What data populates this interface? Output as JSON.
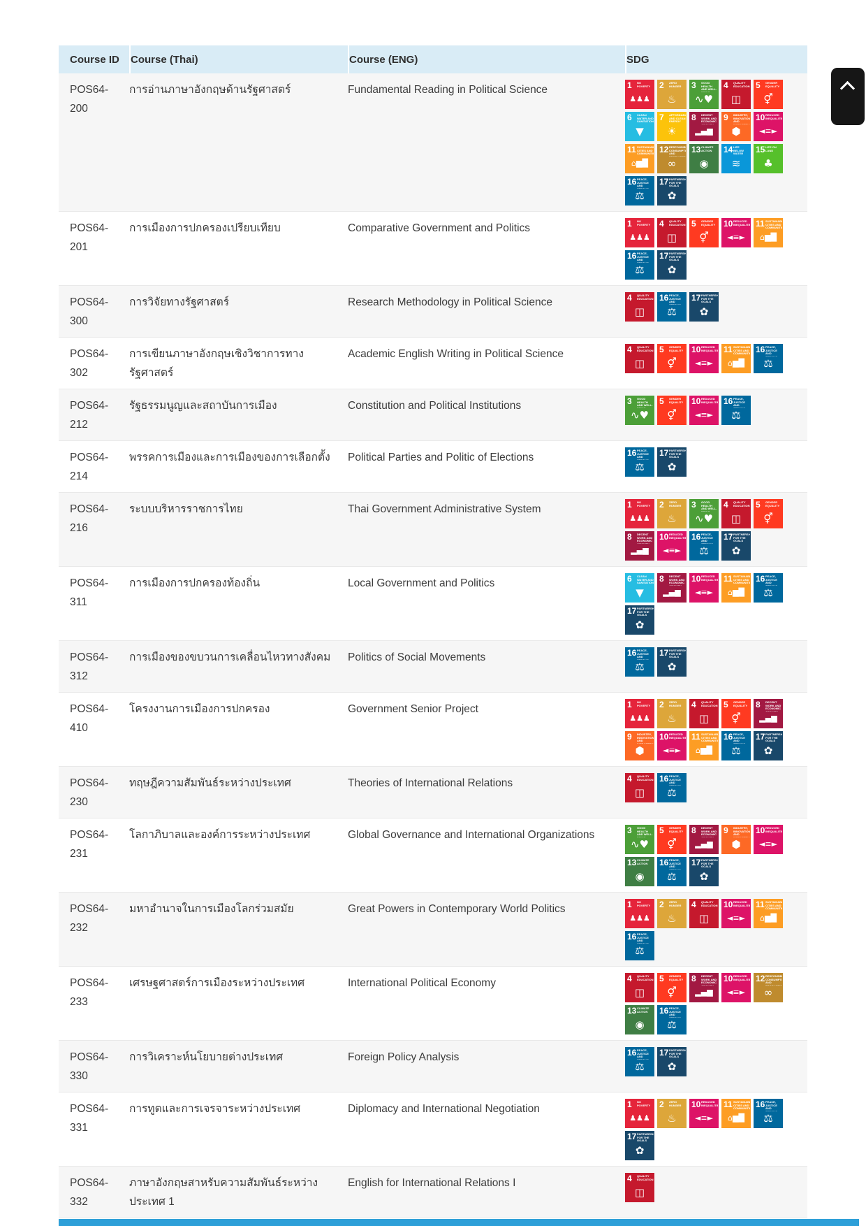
{
  "header": {
    "columns": [
      "Course ID",
      "Course (Thai)",
      "Course (ENG)",
      "SDG"
    ]
  },
  "sdg_goals": {
    "1": {
      "name": "sdg-1-no-poverty-icon",
      "title": "NO POVERTY",
      "color": "#E5243B",
      "glyph": "♟♟♟"
    },
    "2": {
      "name": "sdg-2-zero-hunger-icon",
      "title": "ZERO HUNGER",
      "color": "#DDA63A",
      "glyph": "♨"
    },
    "3": {
      "name": "sdg-3-good-health-icon",
      "title": "GOOD HEALTH AND WELL-BEING",
      "color": "#4C9F38",
      "glyph": "∿♥"
    },
    "4": {
      "name": "sdg-4-quality-education-icon",
      "title": "QUALITY EDUCATION",
      "color": "#C5192D",
      "glyph": "◫"
    },
    "5": {
      "name": "sdg-5-gender-equality-icon",
      "title": "GENDER EQUALITY",
      "color": "#FF3A21",
      "glyph": "⚥"
    },
    "6": {
      "name": "sdg-6-clean-water-icon",
      "title": "CLEAN WATER AND SANITATION",
      "color": "#26BDE2",
      "glyph": "▼"
    },
    "7": {
      "name": "sdg-7-clean-energy-icon",
      "title": "AFFORDABLE AND CLEAN ENERGY",
      "color": "#FCC30B",
      "glyph": "☀"
    },
    "8": {
      "name": "sdg-8-decent-work-icon",
      "title": "DECENT WORK AND ECONOMIC GROWTH",
      "color": "#A21942",
      "glyph": "▂▄▆"
    },
    "9": {
      "name": "sdg-9-industry-innovation-icon",
      "title": "INDUSTRY, INNOVATION AND INFRASTRUCTURE",
      "color": "#FD6925",
      "glyph": "⬢"
    },
    "10": {
      "name": "sdg-10-reduced-inequalities-icon",
      "title": "REDUCED INEQUALITIES",
      "color": "#DD1367",
      "glyph": "◄≡►"
    },
    "11": {
      "name": "sdg-11-sustainable-cities-icon",
      "title": "SUSTAINABLE CITIES AND COMMUNITIES",
      "color": "#FD9D24",
      "glyph": "⌂▆█"
    },
    "12": {
      "name": "sdg-12-responsible-consumption-icon",
      "title": "RESPONSIBLE CONSUMPTION AND PRODUCTION",
      "color": "#BF8B2E",
      "glyph": "∞"
    },
    "13": {
      "name": "sdg-13-climate-action-icon",
      "title": "CLIMATE ACTION",
      "color": "#3F7E44",
      "glyph": "◉"
    },
    "14": {
      "name": "sdg-14-life-below-water-icon",
      "title": "LIFE BELOW WATER",
      "color": "#0A97D9",
      "glyph": "≋"
    },
    "15": {
      "name": "sdg-15-life-on-land-icon",
      "title": "LIFE ON LAND",
      "color": "#56C02B",
      "glyph": "♣"
    },
    "16": {
      "name": "sdg-16-peace-justice-icon",
      "title": "PEACE, JUSTICE AND STRONG INSTITUTIONS",
      "color": "#00689D",
      "glyph": "⚖"
    },
    "17": {
      "name": "sdg-17-partnerships-icon",
      "title": "PARTNERSHIPS FOR THE GOALS",
      "color": "#19486A",
      "glyph": "✿"
    }
  },
  "courses": [
    {
      "id": "POS64-200",
      "thai": "การอ่านภาษาอังกฤษด้านรัฐศาสตร์",
      "eng": "Fundamental Reading in Political Science",
      "sdgs": [
        1,
        2,
        3,
        4,
        5,
        6,
        7,
        8,
        9,
        10,
        11,
        12,
        13,
        14,
        15,
        16,
        17
      ]
    },
    {
      "id": "POS64-201",
      "thai": "การเมืองการปกครองเปรียบเทียบ",
      "eng": "Comparative Government and Politics",
      "sdgs": [
        1,
        4,
        5,
        10,
        11,
        16,
        17
      ]
    },
    {
      "id": "POS64-300",
      "thai": "การวิจัยทางรัฐศาสตร์",
      "eng": "Research Methodology in Political Science",
      "sdgs": [
        4,
        16,
        17
      ]
    },
    {
      "id": "POS64-302",
      "thai": "การเขียนภาษาอังกฤษเชิงวิชาการทางรัฐศาสตร์",
      "eng": "Academic English Writing in Political Science",
      "sdgs": [
        4,
        5,
        10,
        11,
        16
      ]
    },
    {
      "id": "POS64-212",
      "thai": "รัฐธรรมนูญและสถาบันการเมือง",
      "eng": "Constitution and Political Institutions",
      "sdgs": [
        3,
        5,
        10,
        16
      ]
    },
    {
      "id": "POS64-214",
      "thai": "พรรคการเมืองและการเมืองของการเลือกตั้ง",
      "eng": "Political Parties and Politic of Elections",
      "sdgs": [
        16,
        17
      ]
    },
    {
      "id": "POS64-216",
      "thai": "ระบบบริหารราชการไทย",
      "eng": "Thai Government Administrative System",
      "sdgs": [
        1,
        2,
        3,
        4,
        5,
        8,
        10,
        16,
        17
      ]
    },
    {
      "id": "POS64-311",
      "thai": "การเมืองการปกครองท้องถิ่น",
      "eng": "Local Government and Politics",
      "sdgs": [
        6,
        8,
        10,
        11,
        16,
        17
      ]
    },
    {
      "id": "POS64-312",
      "thai": "การเมืองของขบวนการเคลื่อนไหวทางสังคม",
      "eng": "Politics of Social Movements",
      "sdgs": [
        16,
        17
      ]
    },
    {
      "id": "POS64-410",
      "thai": "โครงงานการเมืองการปกครอง",
      "eng": "Government Senior Project",
      "sdgs": [
        1,
        2,
        4,
        5,
        8,
        9,
        10,
        11,
        16,
        17
      ]
    },
    {
      "id": "POS64-230",
      "thai": "ทฤษฎีความสัมพันธ์ระหว่างประเทศ",
      "eng": "Theories of International Relations",
      "sdgs": [
        4,
        16
      ]
    },
    {
      "id": "POS64-231",
      "thai": "โลกาภิบาลและองค์การระหว่างประเทศ",
      "eng": "Global Governance and International Organizations",
      "sdgs": [
        3,
        5,
        8,
        9,
        10,
        13,
        16,
        17
      ]
    },
    {
      "id": "POS64-232",
      "thai": "มหาอำนาจในการเมืองโลกร่วมสมัย",
      "eng": "Great Powers in Contemporary World Politics",
      "sdgs": [
        1,
        2,
        4,
        10,
        11,
        16
      ]
    },
    {
      "id": "POS64-233",
      "thai": "เศรษฐศาสตร์การเมืองระหว่างประเทศ",
      "eng": "International Political Economy",
      "sdgs": [
        4,
        5,
        8,
        10,
        12,
        13,
        16
      ]
    },
    {
      "id": "POS64-330",
      "thai": "การวิเคราะห์นโยบายต่างประเทศ",
      "eng": "Foreign Policy Analysis",
      "sdgs": [
        16,
        17
      ]
    },
    {
      "id": "POS64-331",
      "thai": "การทูตและการเจรจาระหว่างประเทศ",
      "eng": "Diplomacy and International Negotiation",
      "sdgs": [
        1,
        2,
        10,
        11,
        16,
        17
      ]
    },
    {
      "id": "POS64-332",
      "thai": "ภาษาอังกฤษสาหรับความสัมพันธ์ระหว่างประเทศ 1",
      "eng": "English for International Relations I",
      "sdgs": [
        4
      ]
    }
  ],
  "colors": {
    "header_bg": "#d9ecf6",
    "stripe_bg": "#f6f6f6",
    "footer_bar": "#2d9fd8",
    "scroll_button_bg": "#161616"
  }
}
